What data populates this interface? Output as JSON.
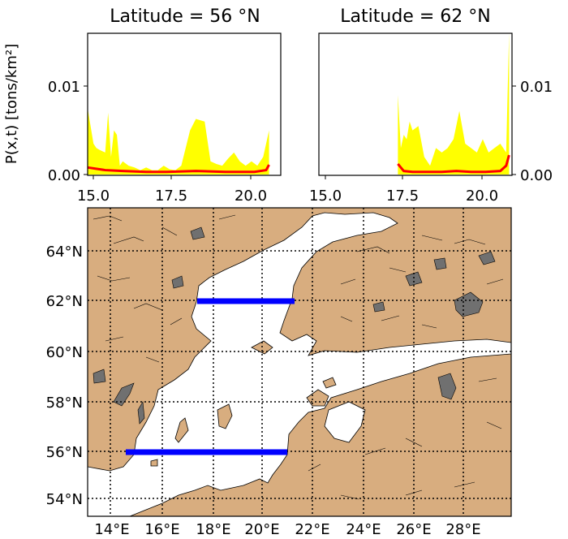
{
  "top_plots": [
    {
      "title": "Latitude = 56 °N"
    },
    {
      "title": "Latitude = 62 °N"
    }
  ],
  "ylabel": "P(x,t) [tons/km²]",
  "chart_data": [
    {
      "type": "area",
      "title": "Latitude = 56 °N",
      "ylabel": "P(x,t) [tons/km²]",
      "xlim": [
        14.8,
        21.4
      ],
      "ylim": [
        0,
        0.016
      ],
      "xticks": [
        "15.0",
        "17.5",
        "20.0"
      ],
      "yticks": [
        "0.00",
        "0.01"
      ],
      "series": [
        {
          "color": "#ffff00",
          "x": [
            14.8,
            15.0,
            15.1,
            15.2,
            15.4,
            15.5,
            15.6,
            15.7,
            15.8,
            15.9,
            16.0,
            16.2,
            16.4,
            16.6,
            16.8,
            17.0,
            17.2,
            17.4,
            17.6,
            17.8,
            18.0,
            18.3,
            18.5,
            18.6,
            18.8,
            19.0,
            19.2,
            19.4,
            19.6,
            19.8,
            20.0,
            20.2,
            20.4,
            20.6,
            20.8,
            21.0
          ],
          "y": [
            0.0075,
            0.0035,
            0.003,
            0.0028,
            0.0025,
            0.007,
            0.002,
            0.005,
            0.0045,
            0.001,
            0.0015,
            0.001,
            0.0008,
            0.0005,
            0.0008,
            0.0005,
            0.0005,
            0.001,
            0.0006,
            0.0005,
            0.001,
            0.005,
            0.0063,
            0.0062,
            0.006,
            0.0015,
            0.0012,
            0.001,
            0.0018,
            0.0025,
            0.0015,
            0.001,
            0.0015,
            0.001,
            0.002,
            0.005
          ]
        },
        {
          "color": "#ff0000",
          "x": [
            14.8,
            15.4,
            16.0,
            16.8,
            17.5,
            18.5,
            19.5,
            20.5,
            20.9,
            21.0
          ],
          "y": [
            0.0008,
            0.0005,
            0.0004,
            0.0003,
            0.0003,
            0.0004,
            0.0003,
            0.0003,
            0.0005,
            0.0011
          ]
        }
      ]
    },
    {
      "type": "area",
      "title": "Latitude = 62 °N",
      "xlim": [
        14.8,
        21.4
      ],
      "ylim": [
        0,
        0.016
      ],
      "xticks": [
        "15.0",
        "17.5",
        "20.0"
      ],
      "yticks": [
        "0.00",
        "0.01"
      ],
      "series": [
        {
          "color": "#ffff00",
          "x": [
            17.5,
            17.6,
            17.7,
            17.8,
            17.9,
            18.0,
            18.2,
            18.4,
            18.6,
            18.8,
            19.0,
            19.2,
            19.4,
            19.6,
            19.8,
            20.0,
            20.2,
            20.4,
            20.6,
            20.8,
            21.0,
            21.2,
            21.3
          ],
          "y": [
            0.009,
            0.003,
            0.0045,
            0.004,
            0.006,
            0.005,
            0.0055,
            0.002,
            0.001,
            0.003,
            0.0025,
            0.003,
            0.004,
            0.0072,
            0.0035,
            0.003,
            0.0025,
            0.004,
            0.0025,
            0.003,
            0.0035,
            0.0025,
            0.016
          ]
        },
        {
          "color": "#ff0000",
          "x": [
            17.5,
            17.7,
            18.0,
            18.5,
            19.0,
            19.5,
            20.0,
            20.5,
            21.0,
            21.2,
            21.3
          ],
          "y": [
            0.0012,
            0.0004,
            0.0003,
            0.0003,
            0.0003,
            0.0004,
            0.0003,
            0.0003,
            0.0004,
            0.001,
            0.0022
          ]
        }
      ]
    }
  ],
  "map": {
    "lat_labels": [
      "64°N",
      "62°N",
      "60°N",
      "58°N",
      "56°N",
      "54°N"
    ],
    "lon_labels": [
      "14°E",
      "16°E",
      "18°E",
      "20°E",
      "22°E",
      "24°E",
      "26°E",
      "28°E"
    ],
    "land_color": "#d8ad7f",
    "sea_color": "#ffffff",
    "lake_color": "#707070",
    "transect_color": "#0000ff"
  }
}
